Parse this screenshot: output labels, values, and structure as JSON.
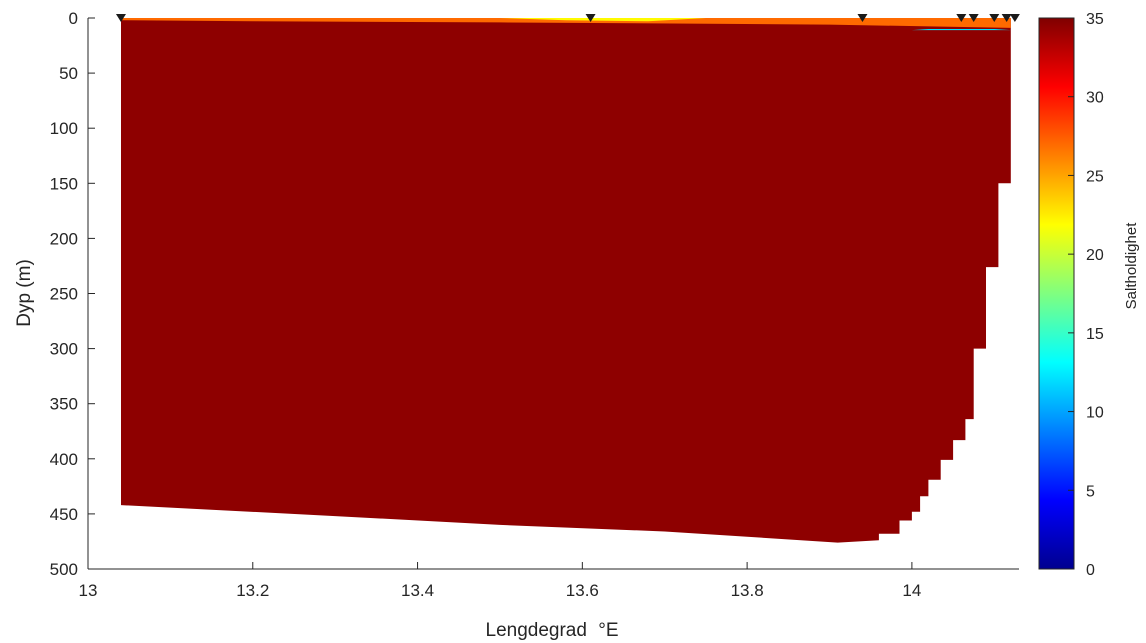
{
  "chart_data": {
    "type": "heatmap",
    "title": "",
    "xlabel": "Lengdegrad",
    "xlabel_unit": "°E",
    "ylabel": "Dyp (m)",
    "colorbar_label": "Saltholdighet",
    "xlim": [
      13.0,
      14.13
    ],
    "ylim": [
      0,
      500
    ],
    "y_reversed": true,
    "clim": [
      0,
      35
    ],
    "colormap": "jet",
    "x_ticks": [
      13,
      13.2,
      13.4,
      13.6,
      13.8,
      14
    ],
    "x_tick_labels": [
      "13",
      "13.2",
      "13.4",
      "13.6",
      "13.8",
      "14"
    ],
    "y_ticks": [
      0,
      50,
      100,
      150,
      200,
      250,
      300,
      350,
      400,
      450,
      500
    ],
    "y_tick_labels": [
      "0",
      "50",
      "100",
      "150",
      "200",
      "250",
      "300",
      "350",
      "400",
      "450",
      "500"
    ],
    "colorbar_ticks": [
      0,
      5,
      10,
      15,
      20,
      25,
      30,
      35
    ],
    "colorbar_tick_labels": [
      "0",
      "5",
      "10",
      "15",
      "20",
      "25",
      "30",
      "35"
    ],
    "deep_water_salinity": 34.5,
    "section_outline": [
      [
        13.04,
        0
      ],
      [
        14.12,
        0
      ],
      [
        14.12,
        150
      ],
      [
        14.105,
        150
      ],
      [
        14.105,
        226
      ],
      [
        14.09,
        226
      ],
      [
        14.09,
        300
      ],
      [
        14.075,
        300
      ],
      [
        14.075,
        364
      ],
      [
        14.065,
        364
      ],
      [
        14.065,
        383
      ],
      [
        14.05,
        383
      ],
      [
        14.05,
        401
      ],
      [
        14.035,
        401
      ],
      [
        14.035,
        419
      ],
      [
        14.02,
        419
      ],
      [
        14.02,
        434
      ],
      [
        14.01,
        434
      ],
      [
        14.01,
        448
      ],
      [
        14.0,
        448
      ],
      [
        14.0,
        456
      ],
      [
        13.985,
        456
      ],
      [
        13.985,
        468
      ],
      [
        13.975,
        468
      ],
      [
        13.96,
        468
      ],
      [
        13.96,
        474
      ],
      [
        13.91,
        476
      ],
      [
        13.7,
        466
      ],
      [
        13.5,
        460
      ],
      [
        13.3,
        452
      ],
      [
        13.04,
        442
      ]
    ],
    "surface_layers": [
      {
        "salinity": 27,
        "outline": [
          [
            13.04,
            0
          ],
          [
            14.12,
            0
          ],
          [
            14.12,
            9
          ],
          [
            13.9,
            6
          ],
          [
            13.5,
            4
          ],
          [
            13.2,
            3
          ],
          [
            13.04,
            2
          ]
        ]
      },
      {
        "salinity": 22,
        "outline": [
          [
            13.5,
            0
          ],
          [
            13.75,
            0
          ],
          [
            13.68,
            3
          ],
          [
            13.58,
            2
          ]
        ]
      },
      {
        "salinity": 12,
        "outline": [
          [
            14.02,
            10
          ],
          [
            14.1,
            10
          ],
          [
            14.12,
            11
          ],
          [
            14.0,
            11
          ]
        ]
      }
    ],
    "stations": [
      13.04,
      13.61,
      13.94,
      14.06,
      14.075,
      14.1,
      14.115,
      14.125
    ]
  }
}
